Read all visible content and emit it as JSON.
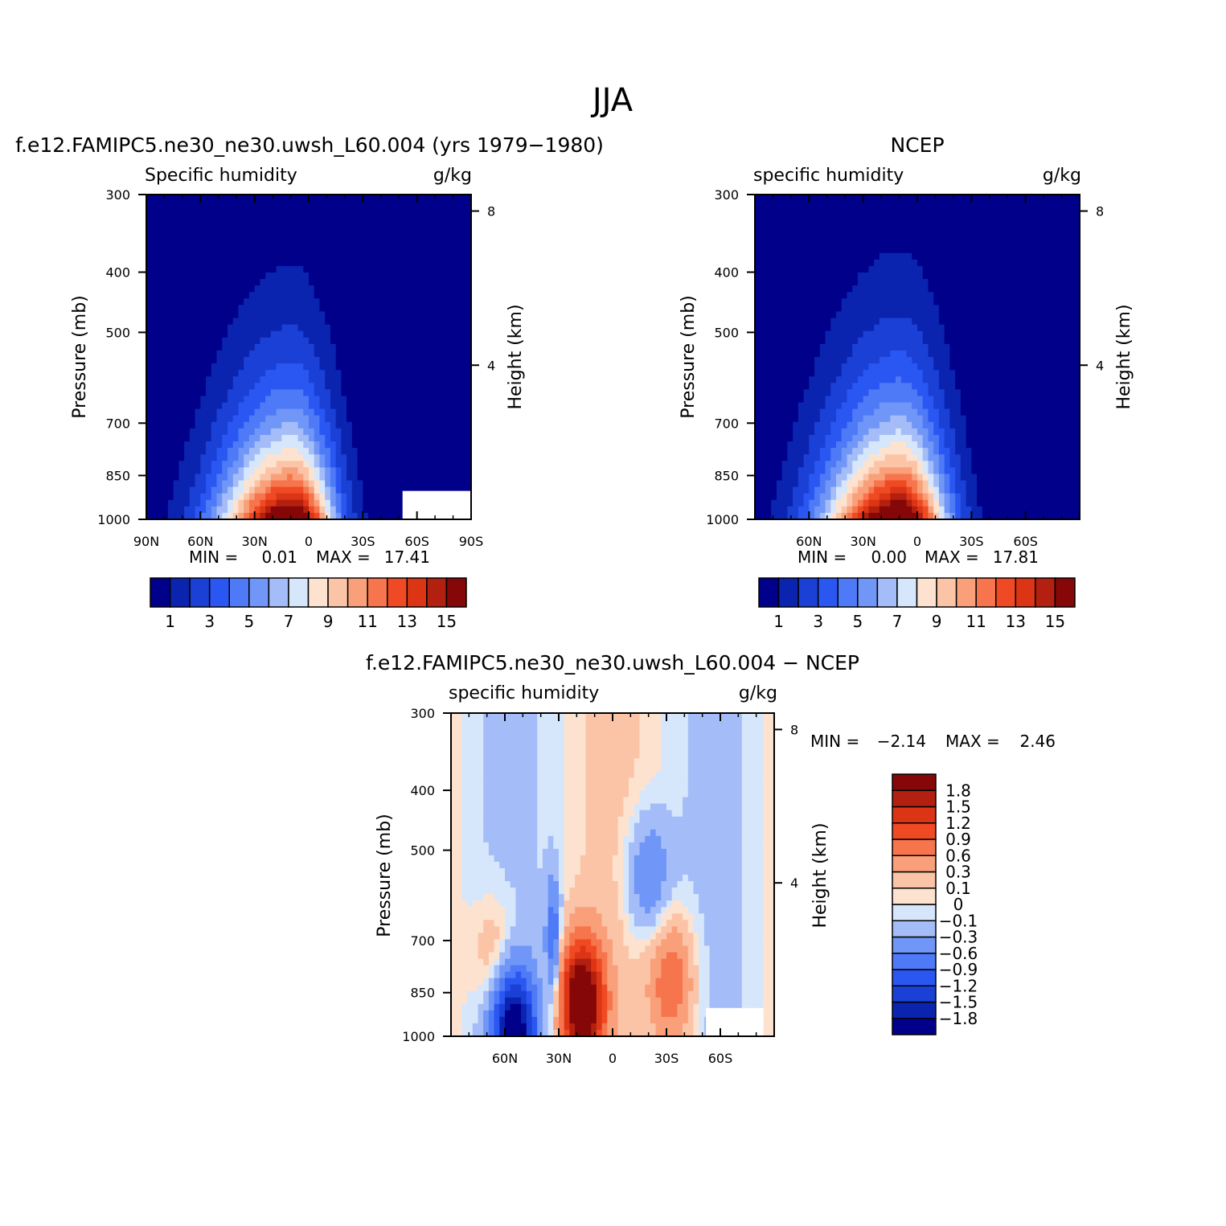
{
  "figure": {
    "title": "JJA",
    "panels": [
      {
        "id": "model",
        "header": "f.e12.FAMIPC5.ne30_ne30.uwsh_L60.004 (yrs 1979-1980)",
        "left_label": "Specific humidity",
        "units": "g/kg",
        "ylabel": "Pressure (mb)",
        "y2label": "Height (km)",
        "min_label": "MIN =",
        "min_value": "0.01",
        "max_label": "MAX =",
        "max_value": "17.41"
      },
      {
        "id": "ncep",
        "header": "NCEP",
        "left_label": "specific humidity",
        "units": "g/kg",
        "ylabel": "Pressure (mb)",
        "y2label": "Height (km)",
        "min_label": "MIN =",
        "min_value": "0.00",
        "max_label": "MAX =",
        "max_value": "17.81"
      },
      {
        "id": "diff",
        "header": "f.e12.FAMIPC5.ne30_ne30.uwsh_L60.004 - NCEP",
        "left_label": "specific humidity",
        "units": "g/kg",
        "ylabel": "Pressure (mb)",
        "y2label": "Height (km)",
        "min_label": "MIN =",
        "min_value": "-2.14",
        "max_label": "MAX =",
        "max_value": "2.46"
      }
    ]
  },
  "chart_data": [
    {
      "type": "heatmap",
      "subtype": "filled-contour",
      "x_axis": {
        "range": [
          90,
          -90
        ],
        "units": "latitude",
        "ticks": [
          90,
          60,
          30,
          0,
          -30,
          -60,
          -90
        ],
        "tick_labels": [
          "90N",
          "60N",
          "30N",
          "0",
          "30S",
          "60S",
          "90S"
        ]
      },
      "y_axis": {
        "scale": "log",
        "range": [
          1000,
          300
        ],
        "ticks": [
          300,
          400,
          500,
          700,
          850,
          1000
        ],
        "tick_labels": [
          "300",
          "400",
          "500",
          "700",
          "850",
          "1000"
        ]
      },
      "y2_axis": {
        "ticks": [
          8,
          4
        ],
        "tick_labels": [
          "8",
          "4"
        ]
      },
      "colorbar": {
        "orientation": "horizontal",
        "levels": [
          1,
          2,
          3,
          4,
          5,
          6,
          7,
          8,
          9,
          10,
          11,
          12,
          13,
          14,
          15,
          16
        ],
        "label_levels": [
          "1",
          "3",
          "5",
          "7",
          "9",
          "11",
          "13",
          "15"
        ],
        "colors": [
          "#00008b",
          "#0a24b0",
          "#1a40d6",
          "#2a57f2",
          "#4e7af7",
          "#7096f7",
          "#a4bdf8",
          "#d6e6fb",
          "#fde3cf",
          "#fcc4a7",
          "#f9a07b",
          "#f6754c",
          "#ef4a23",
          "#dc3515",
          "#b3200f",
          "#850707"
        ]
      },
      "field": {
        "description": "specific humidity, peaked near 10N at surface",
        "peak_lat": 10,
        "peak_value": 17.41,
        "north_decay_deg": 40,
        "south_decay_deg": 24,
        "scale_height_km": 2.3,
        "missing_regions": [
          {
            "lat": [
              -52,
              -90
            ],
            "p": [
              1000,
              900
            ]
          }
        ]
      }
    },
    {
      "type": "heatmap",
      "subtype": "filled-contour",
      "x_axis": {
        "range": [
          90,
          -90
        ],
        "units": "latitude",
        "ticks": [
          90,
          60,
          30,
          0,
          -30,
          -60,
          -90
        ],
        "tick_labels": [
          "",
          "60N",
          "30N",
          "0",
          "30S",
          "60S",
          ""
        ]
      },
      "y_axis": {
        "scale": "log",
        "range": [
          1000,
          300
        ],
        "ticks": [
          300,
          400,
          500,
          700,
          850,
          1000
        ],
        "tick_labels": [
          "300",
          "400",
          "500",
          "700",
          "850",
          "1000"
        ]
      },
      "y2_axis": {
        "ticks": [
          8,
          4
        ],
        "tick_labels": [
          "8",
          "4"
        ]
      },
      "colorbar": {
        "orientation": "horizontal",
        "levels": [
          1,
          2,
          3,
          4,
          5,
          6,
          7,
          8,
          9,
          10,
          11,
          12,
          13,
          14,
          15,
          16
        ],
        "label_levels": [
          "1",
          "3",
          "5",
          "7",
          "9",
          "11",
          "13",
          "15"
        ],
        "colors": [
          "#00008b",
          "#0a24b0",
          "#1a40d6",
          "#2a57f2",
          "#4e7af7",
          "#7096f7",
          "#a4bdf8",
          "#d6e6fb",
          "#fde3cf",
          "#fcc4a7",
          "#f9a07b",
          "#f6754c",
          "#ef4a23",
          "#dc3515",
          "#b3200f",
          "#850707"
        ]
      },
      "field": {
        "description": "specific humidity, peaked near 10N at surface",
        "peak_lat": 10,
        "peak_value": 17.81,
        "north_decay_deg": 42,
        "south_decay_deg": 26,
        "scale_height_km": 2.4,
        "missing_regions": []
      }
    },
    {
      "type": "heatmap",
      "subtype": "filled-contour",
      "x_axis": {
        "range": [
          90,
          -90
        ],
        "units": "latitude",
        "ticks": [
          90,
          60,
          30,
          0,
          -30,
          -60,
          -90
        ],
        "tick_labels": [
          "",
          "60N",
          "30N",
          "0",
          "30S",
          "60S",
          ""
        ]
      },
      "y_axis": {
        "scale": "log",
        "range": [
          1000,
          300
        ],
        "ticks": [
          300,
          400,
          500,
          700,
          850,
          1000
        ],
        "tick_labels": [
          "300",
          "400",
          "500",
          "700",
          "850",
          "1000"
        ]
      },
      "y2_axis": {
        "ticks": [
          8,
          4
        ],
        "tick_labels": [
          "8",
          "4"
        ]
      },
      "colorbar": {
        "orientation": "vertical",
        "levels": [
          -2.1,
          -1.8,
          -1.5,
          -1.2,
          -0.9,
          -0.6,
          -0.3,
          -0.1,
          0,
          0.1,
          0.3,
          0.6,
          0.9,
          1.2,
          1.5,
          1.8,
          2.1
        ],
        "label_levels": [
          "1.8",
          "1.5",
          "1.2",
          "0.9",
          "0.6",
          "0.3",
          "0.1",
          "0",
          "-0.1",
          "-0.3",
          "-0.6",
          "-0.9",
          "-1.2",
          "-1.5",
          "-1.8"
        ],
        "colors": [
          "#00008b",
          "#0a24b0",
          "#1a40d6",
          "#2a57f2",
          "#4e7af7",
          "#7096f7",
          "#a4bdf8",
          "#d6e6fb",
          "#fde3cf",
          "#fcc4a7",
          "#f9a07b",
          "#f6754c",
          "#ef4a23",
          "#dc3515",
          "#b3200f",
          "#850707"
        ]
      },
      "field": {
        "description": "model minus NCEP specific humidity difference",
        "features": [
          {
            "sign": "positive",
            "lat": 17,
            "p": 880,
            "value": 2.46
          },
          {
            "sign": "positive",
            "lat": -33,
            "p": 820,
            "value": 0.9
          },
          {
            "sign": "positive",
            "lat": 65,
            "p": 750,
            "value": 0.4
          },
          {
            "sign": "negative",
            "lat": 33,
            "p": 700,
            "value": -0.9
          },
          {
            "sign": "negative",
            "lat": 55,
            "p": 980,
            "value": -2.14
          },
          {
            "sign": "negative",
            "lat": -20,
            "p": 550,
            "value": -0.6
          }
        ],
        "missing_regions": [
          {
            "lat": [
              -52,
              -84
            ],
            "p": [
              1000,
              900
            ]
          }
        ]
      }
    }
  ]
}
